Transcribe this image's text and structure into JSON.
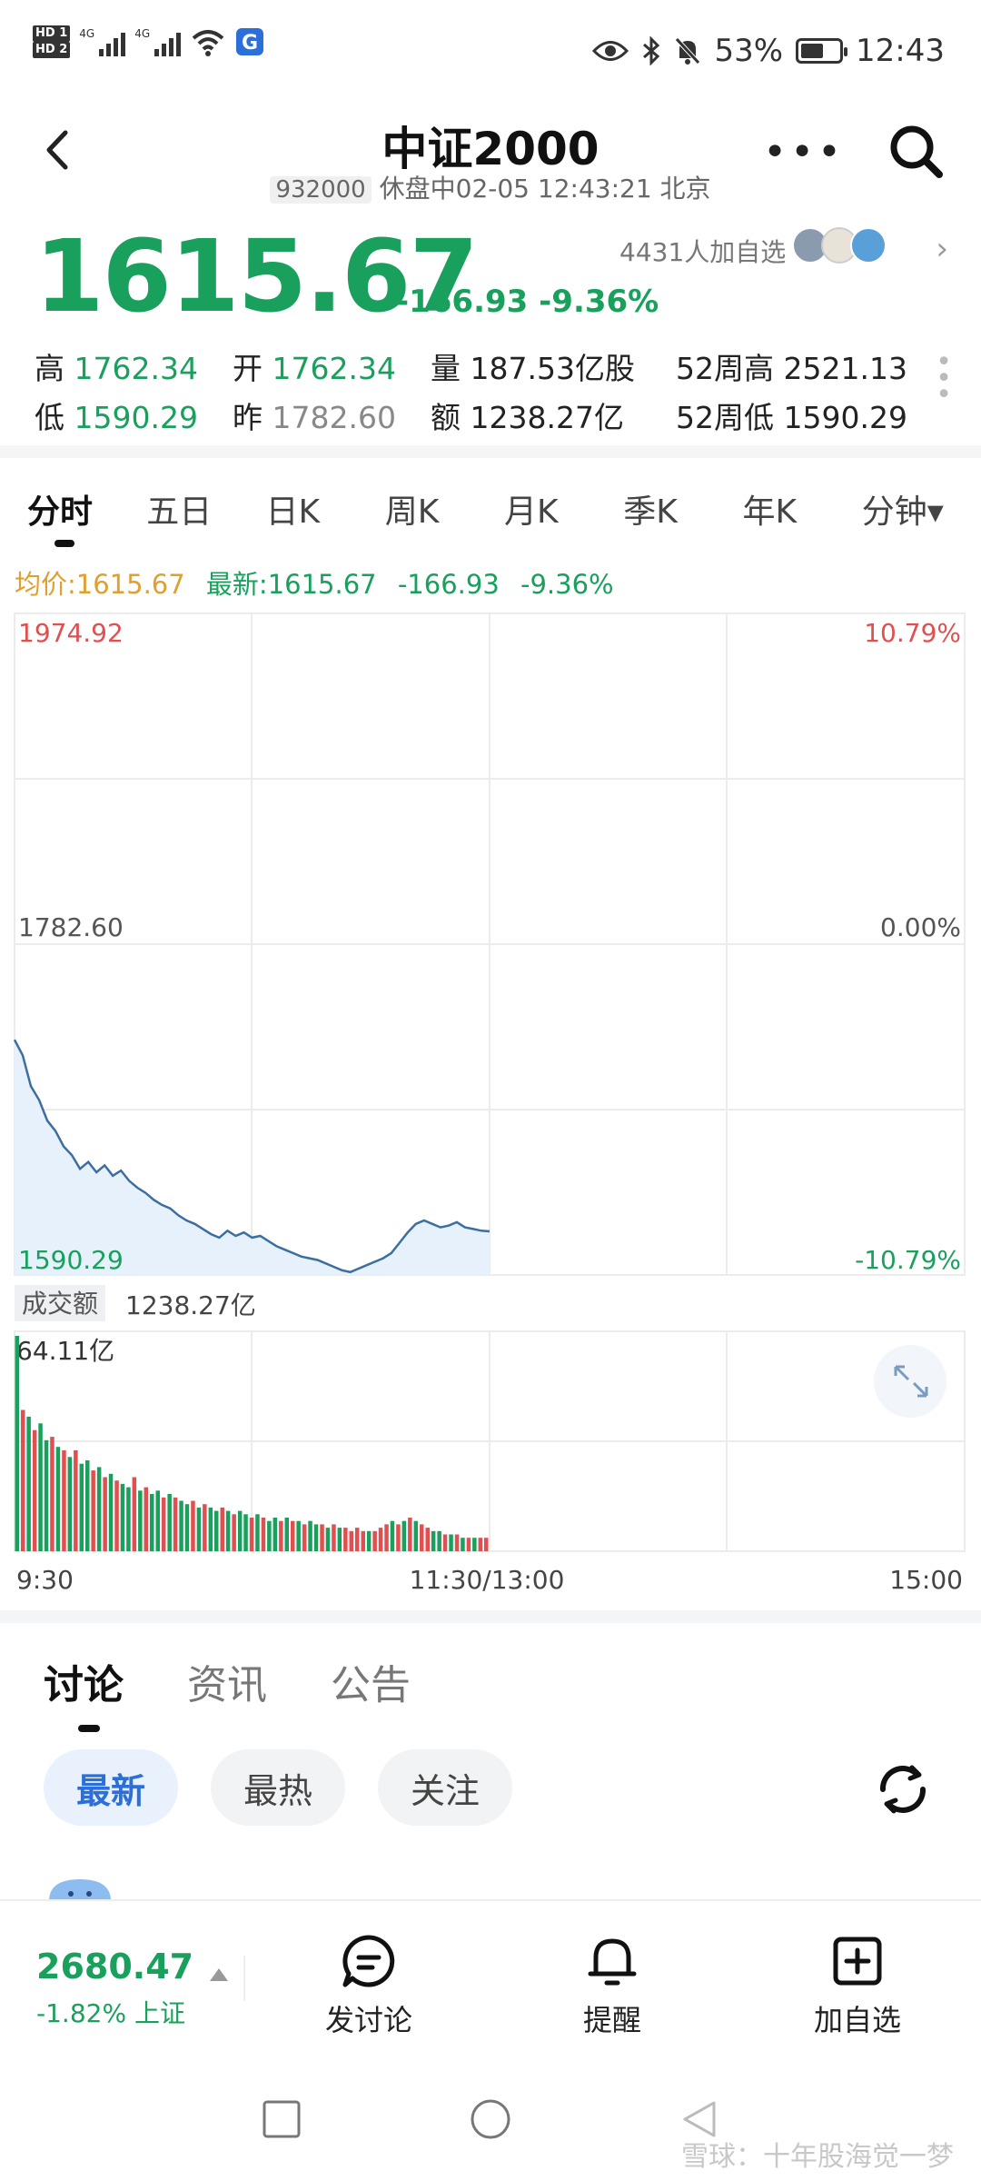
{
  "status_bar": {
    "hd1": "HD 1",
    "hd2": "HD 2",
    "net1": "4G",
    "net2": "4G",
    "battery": "53%",
    "time": "12:43"
  },
  "header": {
    "title": "中证2000",
    "code": "932000",
    "status": "休盘中02-05 12:43:21 北京"
  },
  "quote": {
    "price": "1615.67",
    "change": "-166.93",
    "change_pct": "-9.36%",
    "followers": "4431人加自选",
    "stats": {
      "high_label": "高",
      "high": "1762.34",
      "open_label": "开",
      "open": "1762.34",
      "volume_label": "量",
      "volume": "187.53亿股",
      "w52_high_label": "52周高",
      "w52_high": "2521.13",
      "low_label": "低",
      "low": "1590.29",
      "prev_label": "昨",
      "prev": "1782.60",
      "amount_label": "额",
      "amount": "1238.27亿",
      "w52_low_label": "52周低",
      "w52_low": "1590.29"
    }
  },
  "chart_tabs": [
    "分时",
    "五日",
    "日K",
    "周K",
    "月K",
    "季K",
    "年K",
    "分钟▾"
  ],
  "legend": {
    "avg": "均价:1615.67",
    "latest": "最新:1615.67",
    "change": "-166.93",
    "change_pct": "-9.36%"
  },
  "chart_data": {
    "type": "line",
    "y_top": "1974.92",
    "y_mid": "1782.60",
    "y_bottom": "1590.29",
    "pct_top": "10.79%",
    "pct_mid": "0.00%",
    "pct_bottom": "-10.79%",
    "ylim": [
      1590.29,
      1974.92
    ],
    "x_labels": [
      "9:30",
      "11:30/13:00",
      "15:00"
    ],
    "price_series": [
      1727,
      1718,
      1700,
      1692,
      1680,
      1674,
      1665,
      1660,
      1652,
      1656,
      1650,
      1654,
      1648,
      1651,
      1645,
      1641,
      1638,
      1634,
      1631,
      1629,
      1625,
      1622,
      1620,
      1617,
      1614,
      1612,
      1616,
      1613,
      1615,
      1612,
      1613,
      1610,
      1607,
      1605,
      1603,
      1601,
      1600,
      1599,
      1597,
      1595,
      1593,
      1592,
      1594,
      1596,
      1598,
      1600,
      1603,
      1609,
      1615,
      1620,
      1622,
      1620,
      1618,
      1619,
      1621,
      1618,
      1617,
      1616,
      1615.67
    ],
    "volume_label": "成交额",
    "volume_total": "1238.27亿",
    "volume_max": "64.11亿",
    "volume_series": [
      64,
      42,
      40,
      36,
      38,
      33,
      34,
      31,
      30,
      28,
      30,
      26,
      27,
      24,
      25,
      22,
      23,
      21,
      20,
      19,
      22,
      18,
      19,
      17,
      18,
      16,
      17,
      16,
      15,
      14,
      15,
      13,
      14,
      13,
      12,
      13,
      12,
      11,
      12,
      11,
      10,
      11,
      10,
      9,
      10,
      9,
      10,
      9,
      9,
      8,
      9,
      8,
      8,
      7,
      8,
      7,
      7,
      6,
      7,
      6,
      6,
      6,
      7,
      8,
      9,
      8,
      9,
      10,
      9,
      8,
      7,
      6,
      6,
      5,
      5,
      5,
      4,
      4,
      4,
      4,
      4
    ],
    "volume_up": [
      false,
      true,
      false,
      true,
      false,
      false,
      true,
      false,
      true,
      false,
      true,
      false,
      false,
      true,
      false,
      true,
      false,
      true,
      false,
      false,
      true,
      false,
      true,
      false,
      false,
      true,
      false,
      true,
      false,
      false,
      true,
      false,
      true,
      false,
      false,
      true,
      false,
      true,
      false,
      false,
      true,
      false,
      true,
      false,
      false,
      true,
      false,
      true,
      false,
      true,
      false,
      false,
      true,
      false,
      true,
      false,
      true,
      true,
      true,
      true,
      false,
      true,
      true,
      true,
      false,
      true,
      false,
      true,
      false,
      true,
      true,
      false,
      false,
      true,
      false,
      true,
      false,
      true,
      false,
      true,
      true
    ]
  },
  "bottom_tabs": [
    "讨论",
    "资讯",
    "公告"
  ],
  "filters": [
    "最新",
    "最热",
    "关注"
  ],
  "bottom_bar": {
    "index_value": "2680.47",
    "index_change": "-1.82% 上证",
    "actions": [
      "发讨论",
      "提醒",
      "加自选"
    ]
  },
  "watermark": "雪球：十年股海觉一梦",
  "colors": {
    "down_green": "#1aa05d",
    "up_red": "#e05050",
    "avg_orange": "#e0a030",
    "accent_blue": "#2d6fd8"
  }
}
